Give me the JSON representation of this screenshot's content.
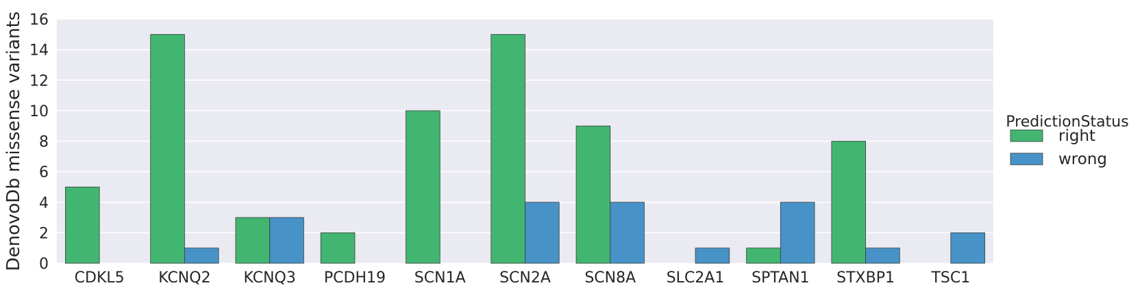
{
  "chart_data": {
    "type": "bar",
    "title": "",
    "xlabel": "",
    "ylabel": "DenovoDb missense variants",
    "ylim": [
      0,
      16
    ],
    "yticks": [
      "0",
      "2",
      "4",
      "6",
      "8",
      "10",
      "12",
      "14",
      "16"
    ],
    "grid": true,
    "categories": [
      "CDKL5",
      "KCNQ2",
      "KCNQ3",
      "PCDH19",
      "SCN1A",
      "SCN2A",
      "SCN8A",
      "SLC2A1",
      "SPTAN1",
      "STXBP1",
      "TSC1"
    ],
    "legend": {
      "title": "PredictionStatus",
      "placement": "right"
    },
    "series": [
      {
        "name": "right",
        "color": "#42b671",
        "values": [
          5,
          15,
          3,
          2,
          10,
          15,
          9,
          0,
          1,
          8,
          0
        ]
      },
      {
        "name": "wrong",
        "color": "#4793c8",
        "values": [
          0,
          1,
          3,
          0,
          0,
          4,
          4,
          1,
          4,
          1,
          2
        ]
      }
    ]
  }
}
